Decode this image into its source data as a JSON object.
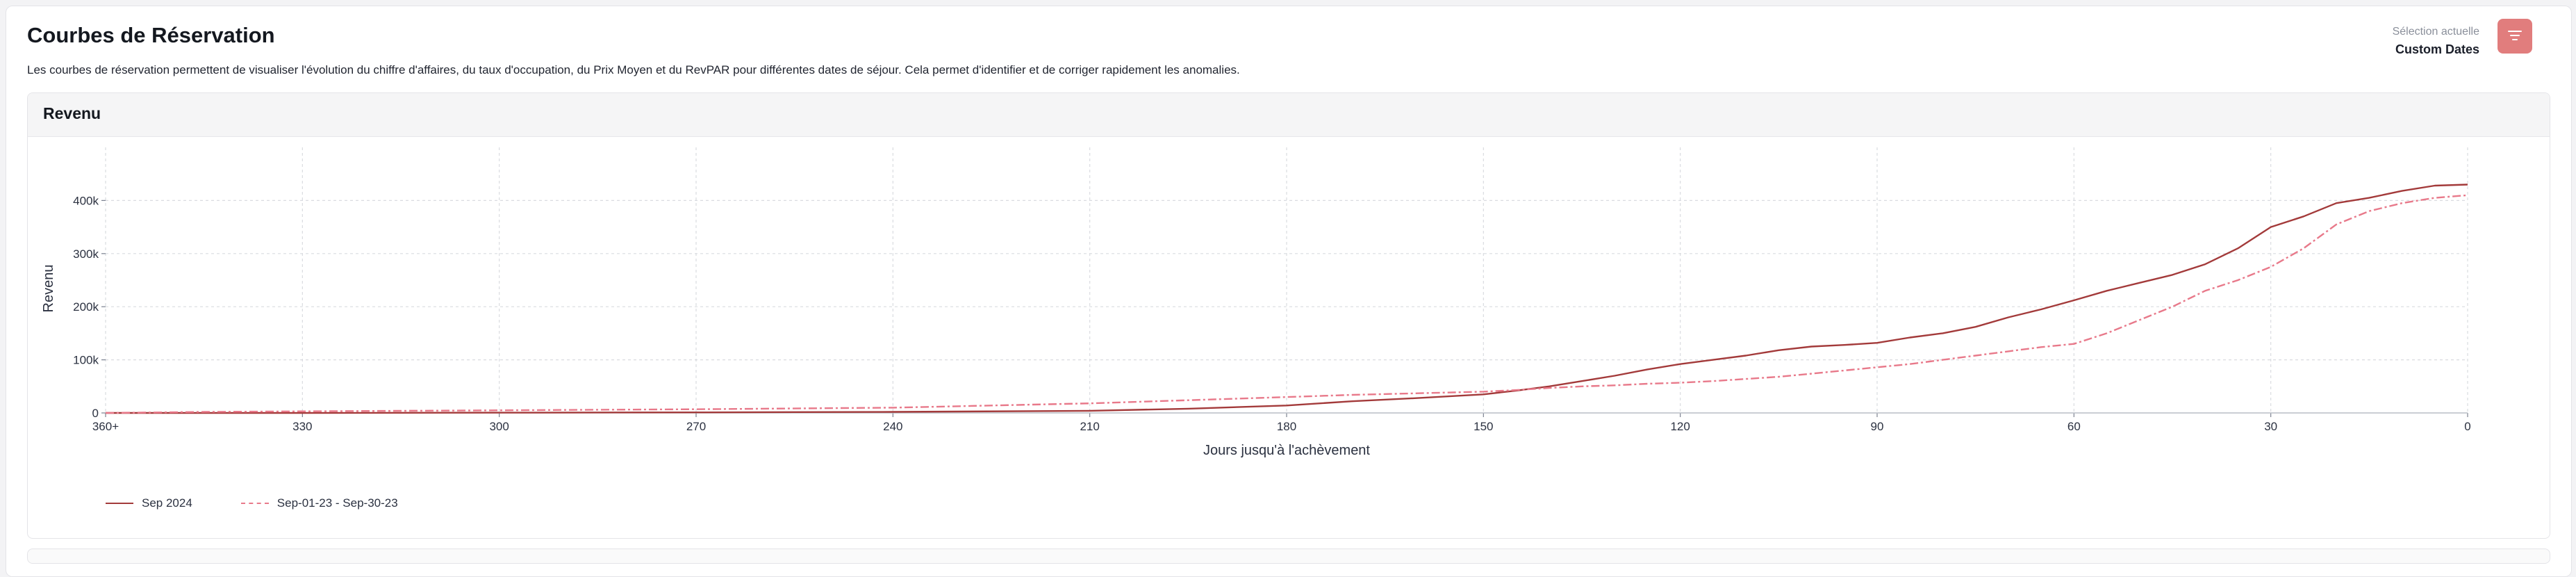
{
  "header": {
    "title": "Courbes de Réservation",
    "subtitle": "Les courbes de réservation permettent de visualiser l'évolution du chiffre d'affaires, du taux d'occupation, du Prix Moyen et du RevPAR pour différentes dates de séjour. Cela permet d'identifier et de corriger rapidement les anomalies.",
    "selection_label": "Sélection actuelle",
    "selection_value": "Custom Dates",
    "filter_icon": "filter-lines-icon"
  },
  "panel": {
    "title": "Revenu"
  },
  "colors": {
    "accent": "#e17d7d",
    "series_current": "#a33a3a",
    "series_previous": "#e8798a"
  },
  "chart_data": {
    "type": "line",
    "title": "",
    "xlabel": "Jours jusqu'à l'achèvement",
    "ylabel": "Revenu",
    "x_tick_labels": [
      "360+",
      "330",
      "300",
      "270",
      "240",
      "210",
      "180",
      "150",
      "120",
      "90",
      "60",
      "30",
      "0"
    ],
    "x_ticks": [
      360,
      330,
      300,
      270,
      240,
      210,
      180,
      150,
      120,
      90,
      60,
      30,
      0
    ],
    "y_tick_labels": [
      "0",
      "100k",
      "200k",
      "300k",
      "400k"
    ],
    "y_ticks": [
      0,
      100000,
      200000,
      300000,
      400000
    ],
    "xlim": [
      360,
      0
    ],
    "ylim": [
      0,
      500000
    ],
    "grid": true,
    "legend_position": "bottom-left",
    "series": [
      {
        "name": "Sep 2024",
        "style": "solid",
        "x": [
          360,
          330,
          300,
          270,
          240,
          210,
          195,
          180,
          170,
          160,
          150,
          145,
          140,
          135,
          130,
          125,
          120,
          115,
          110,
          105,
          100,
          95,
          90,
          85,
          80,
          75,
          70,
          65,
          60,
          55,
          50,
          45,
          40,
          35,
          30,
          25,
          20,
          15,
          10,
          5,
          0
        ],
        "y": [
          0,
          0,
          500,
          1000,
          2000,
          4000,
          8000,
          14000,
          22000,
          28000,
          35000,
          42000,
          50000,
          60000,
          70000,
          82000,
          92000,
          100000,
          108000,
          118000,
          125000,
          128000,
          132000,
          142000,
          150000,
          162000,
          180000,
          195000,
          212000,
          230000,
          245000,
          260000,
          280000,
          310000,
          350000,
          370000,
          395000,
          405000,
          418000,
          428000,
          430000
        ]
      },
      {
        "name": "Sep-01-23 - Sep-30-23",
        "style": "dashed",
        "x": [
          360,
          345,
          330,
          300,
          270,
          240,
          225,
          210,
          195,
          180,
          170,
          160,
          150,
          145,
          140,
          135,
          130,
          125,
          120,
          115,
          110,
          105,
          100,
          95,
          90,
          85,
          80,
          75,
          70,
          65,
          60,
          55,
          50,
          45,
          40,
          35,
          30,
          25,
          20,
          15,
          10,
          5,
          0
        ],
        "y": [
          0,
          2000,
          3000,
          5000,
          7000,
          10000,
          14000,
          18000,
          24000,
          30000,
          34000,
          37000,
          40000,
          43000,
          47000,
          50000,
          52000,
          55000,
          57000,
          60000,
          64000,
          68000,
          74000,
          80000,
          86000,
          92000,
          100000,
          108000,
          116000,
          124000,
          130000,
          150000,
          175000,
          200000,
          230000,
          250000,
          275000,
          310000,
          355000,
          380000,
          395000,
          405000,
          410000
        ]
      }
    ]
  }
}
